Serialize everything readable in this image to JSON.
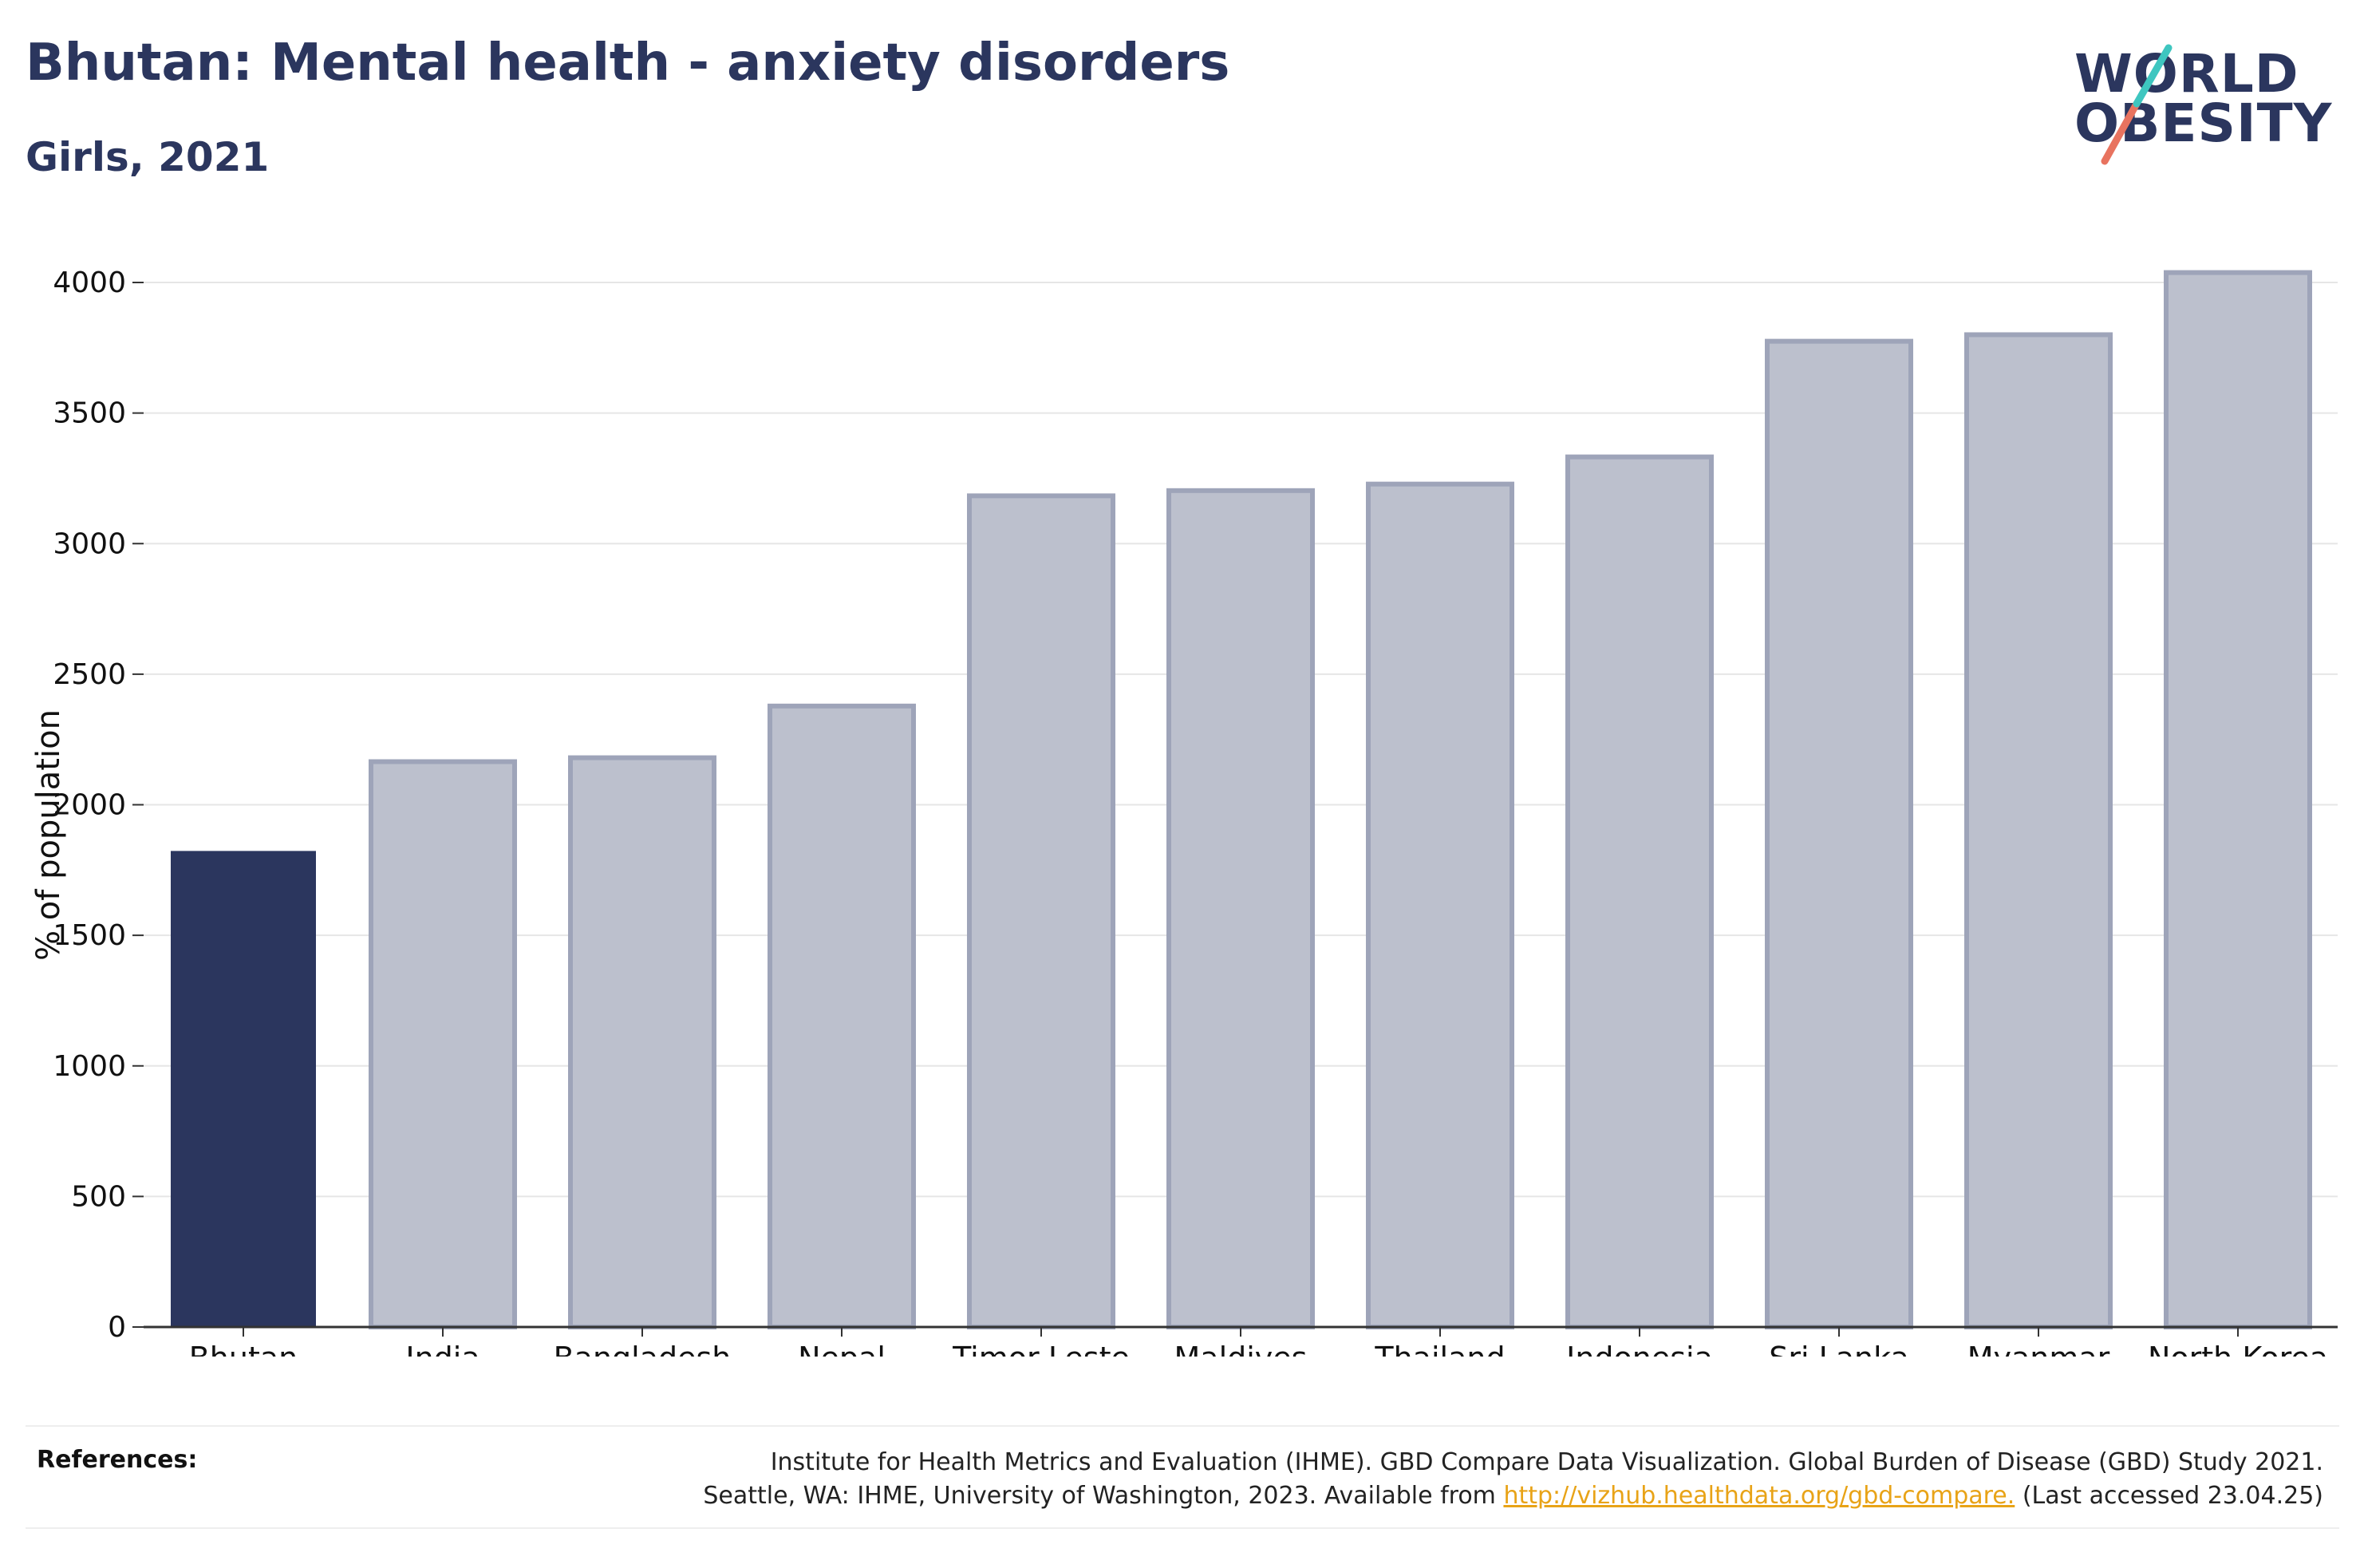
{
  "header": {
    "title": "Bhutan: Mental health - anxiety disorders",
    "subtitle": "Girls, 2021"
  },
  "logo": {
    "line1": "WORLD",
    "line2": "OBESITY"
  },
  "colors": {
    "highlight": "#2b365e",
    "others": "#bcc0cd",
    "others_border": "#9ea4b9",
    "accent_teal": "#3ec6c0",
    "accent_coral": "#e8735f",
    "link": "#e8a317"
  },
  "chart_data": {
    "type": "bar",
    "title": "Bhutan: Mental health - anxiety disorders",
    "subtitle": "Girls, 2021",
    "ylabel": "% of population",
    "xlabel": "",
    "categories": [
      "Bhutan",
      "India",
      "Bangladesh",
      "Nepal",
      "Timor-Leste",
      "Maldives",
      "Thailand",
      "Indonesia",
      "Sri Lanka",
      "Myanmar",
      "North Korea"
    ],
    "values": [
      1820,
      2165,
      2180,
      2378,
      3183,
      3203,
      3228,
      3332,
      3775,
      3800,
      4038
    ],
    "highlight": "Bhutan",
    "ylim": [
      0,
      4000
    ],
    "yticks": [
      0,
      500,
      1000,
      1500,
      2000,
      2500,
      3000,
      3500,
      4000
    ],
    "grid": true,
    "legend": "none"
  },
  "references": {
    "label": "References:",
    "line1": "Institute for Health Metrics and Evaluation (IHME). GBD Compare Data Visualization. Global Burden of Disease (GBD) Study 2021.",
    "line2_prefix": "Seattle, WA: IHME, University of Washington, 2023. Available from ",
    "link": "http://vizhub.healthdata.org/gbd-compare.",
    "line2_suffix": " (Last accessed 23.04.25)"
  }
}
